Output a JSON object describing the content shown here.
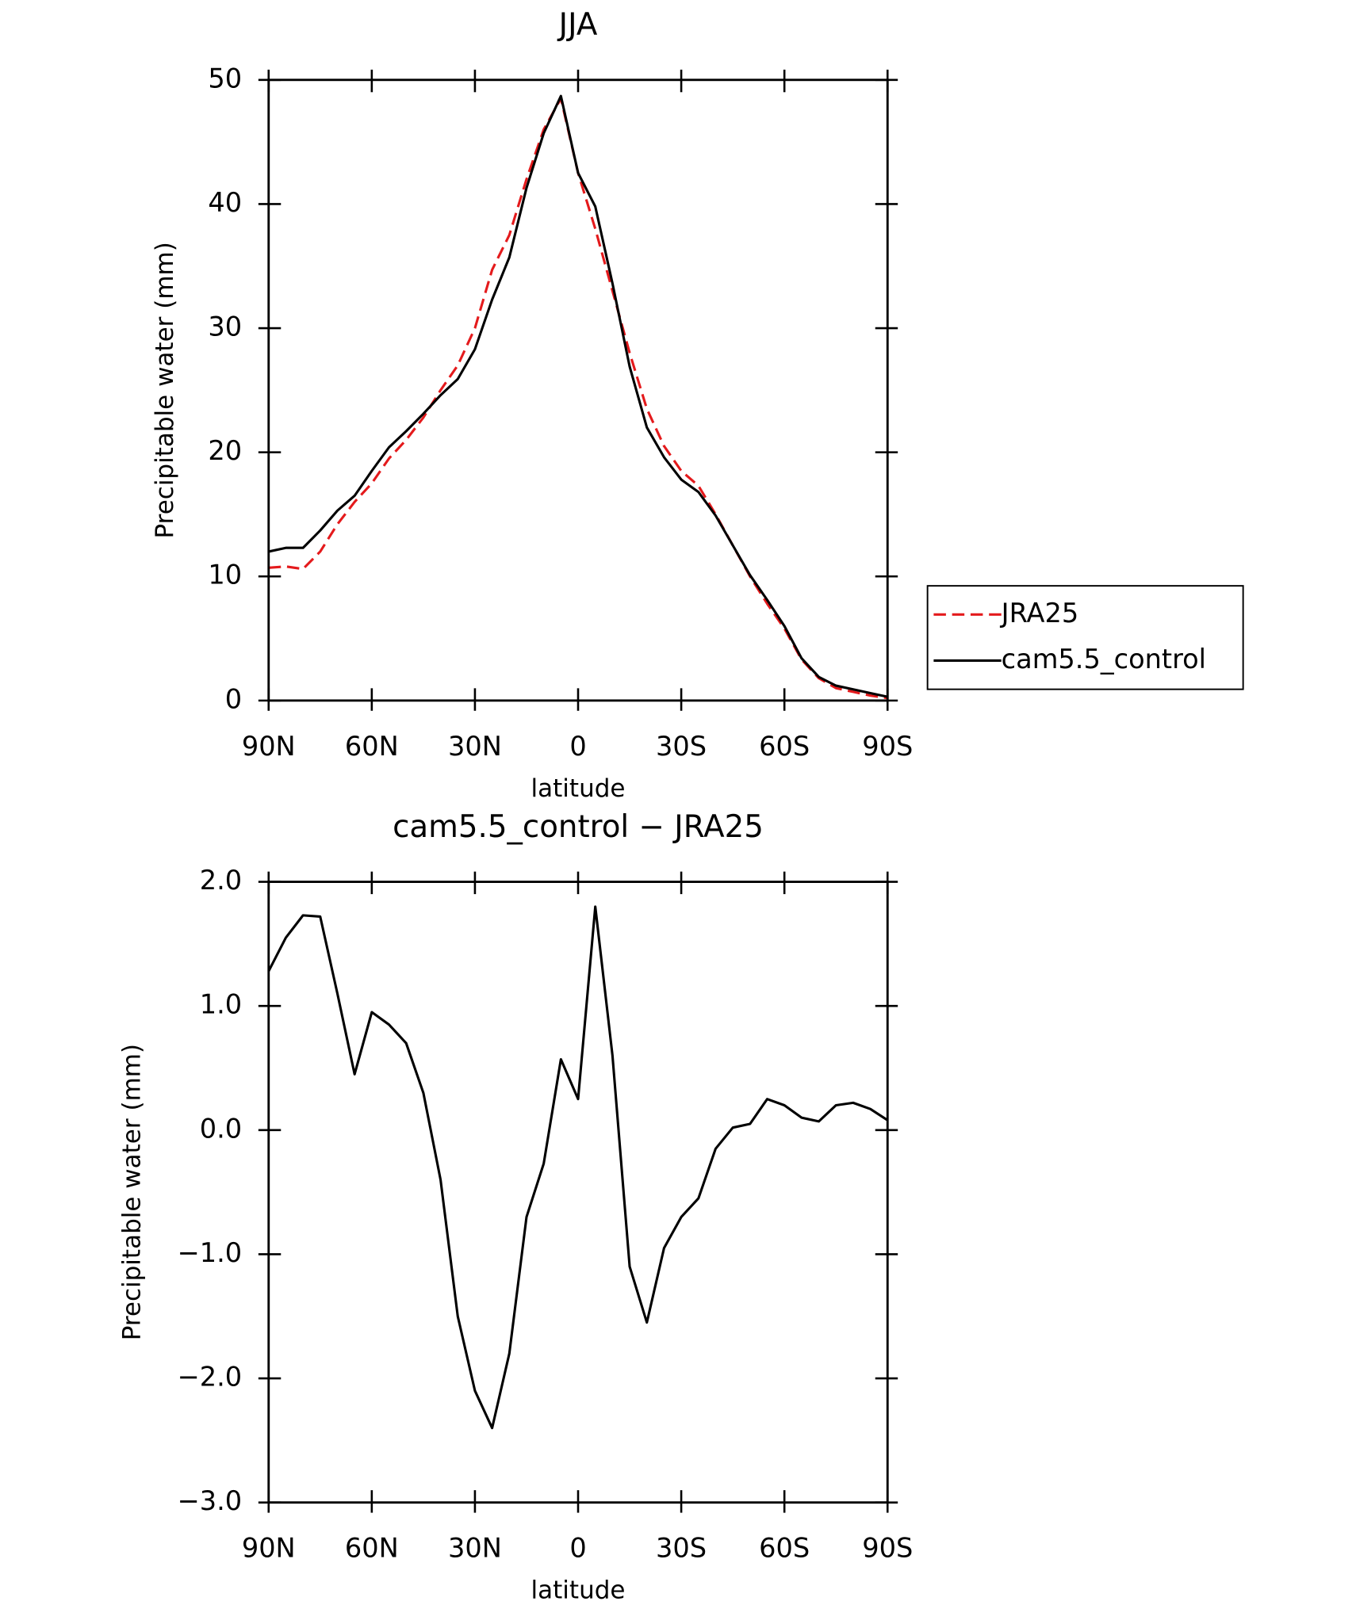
{
  "chart_data": [
    {
      "type": "line",
      "title": "JJA",
      "xlabel": "latitude",
      "ylabel": "Precipitable water (mm)",
      "x": [
        90,
        85,
        80,
        75,
        70,
        65,
        60,
        55,
        50,
        45,
        40,
        35,
        30,
        25,
        20,
        15,
        10,
        5,
        0,
        -5,
        -10,
        -15,
        -20,
        -25,
        -30,
        -35,
        -40,
        -45,
        -50,
        -55,
        -60,
        -65,
        -70,
        -75,
        -80,
        -85,
        -90
      ],
      "series": [
        {
          "name": "JRA25",
          "color": "#e41a1c",
          "line_style": "dashed",
          "values": [
            10.7,
            10.8,
            10.6,
            12,
            14.2,
            16,
            17.5,
            19.5,
            21,
            22.8,
            25,
            27,
            30,
            34.7,
            37.5,
            42,
            46,
            48.5,
            42.5,
            38,
            33,
            28,
            23.5,
            20.5,
            18.5,
            17.3,
            15,
            12.5,
            10,
            7.8,
            5.8,
            3.3,
            1.8,
            1.0,
            0.7,
            0.4,
            0.2
          ]
        },
        {
          "name": "cam5.5_control",
          "color": "#000000",
          "line_style": "solid",
          "values": [
            12,
            12.3,
            12.3,
            13.7,
            15.3,
            16.5,
            18.5,
            20.4,
            21.7,
            23.1,
            24.6,
            25.9,
            28.3,
            32.3,
            35.7,
            41.3,
            45.7,
            48.7,
            42.5,
            39.8,
            33.6,
            26.9,
            22,
            19.6,
            17.8,
            16.8,
            14.9,
            12.5,
            10.1,
            8.1,
            6,
            3.4,
            1.9,
            1.2,
            0.9,
            0.6,
            0.3
          ]
        }
      ],
      "xlim": [
        90,
        -90
      ],
      "xticks": [
        {
          "value": 90,
          "label": "90N"
        },
        {
          "value": 60,
          "label": "60N"
        },
        {
          "value": 30,
          "label": "30N"
        },
        0,
        {
          "value": -30,
          "label": "30S"
        },
        {
          "value": -60,
          "label": "60S"
        },
        {
          "value": -90,
          "label": "90S"
        }
      ],
      "ylim": [
        0,
        50
      ],
      "yticks": [
        0,
        10,
        20,
        30,
        40,
        50
      ],
      "legend": "outside-right"
    },
    {
      "type": "line",
      "title": "cam5.5_control − JRA25",
      "xlabel": "latitude",
      "ylabel": "Precipitable water (mm)",
      "x": [
        90,
        85,
        80,
        75,
        70,
        65,
        60,
        55,
        50,
        45,
        40,
        35,
        30,
        25,
        20,
        15,
        10,
        5,
        0,
        -5,
        -10,
        -15,
        -20,
        -25,
        -30,
        -35,
        -40,
        -45,
        -50,
        -55,
        -60,
        -65,
        -70,
        -75,
        -80,
        -85,
        -90
      ],
      "series": [
        {
          "color": "#000000",
          "line_style": "solid",
          "values": [
            1.28,
            1.55,
            1.73,
            1.72,
            1.1,
            0.45,
            0.95,
            0.85,
            0.7,
            0.3,
            -0.4,
            -1.5,
            -2.1,
            -2.4,
            -1.8,
            -0.7,
            -0.27,
            0.57,
            0.25,
            1.8,
            0.6,
            -1.1,
            -1.55,
            -0.95,
            -0.7,
            -0.55,
            -0.15,
            0.02,
            0.05,
            0.25,
            0.2,
            0.1,
            0.07,
            0.2,
            0.22,
            0.17,
            0.08
          ]
        }
      ],
      "xlim": [
        90,
        -90
      ],
      "xticks": [
        {
          "value": 90,
          "label": "90N"
        },
        {
          "value": 60,
          "label": "60N"
        },
        {
          "value": 30,
          "label": "30N"
        },
        0,
        {
          "value": -30,
          "label": "30S"
        },
        {
          "value": -60,
          "label": "60S"
        },
        {
          "value": -90,
          "label": "90S"
        }
      ],
      "ylim": [
        -3,
        2
      ],
      "yticks": [
        {
          "value": -3,
          "label": "−3.0"
        },
        {
          "value": -2,
          "label": "−2.0"
        },
        {
          "value": -1,
          "label": "−1.0"
        },
        {
          "value": 0,
          "label": "0.0"
        },
        {
          "value": 1,
          "label": "1.0"
        },
        {
          "value": 2,
          "label": "2.0"
        }
      ]
    }
  ]
}
